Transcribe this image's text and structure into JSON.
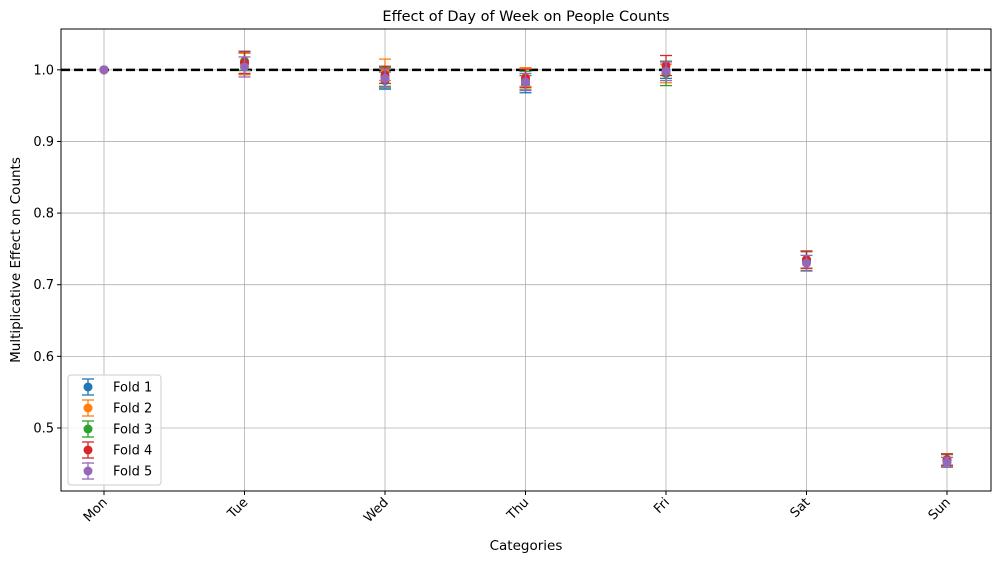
{
  "chart_data": {
    "type": "scatter",
    "title": "Effect of Day of Week on People Counts",
    "xlabel": "Categories",
    "ylabel": "Multiplicative Effect on Counts",
    "categories": [
      "Mon",
      "Tue",
      "Wed",
      "Thu",
      "Fri",
      "Sat",
      "Sun"
    ],
    "ylim": [
      0.412,
      1.057
    ],
    "yticks": [
      "0.5",
      "0.6",
      "0.7",
      "0.8",
      "0.9",
      "1.0"
    ],
    "grid": true,
    "legend_position": "lower-left",
    "reference_line": {
      "y": 1.0,
      "style": "dashed",
      "color": "#000000"
    },
    "series": [
      {
        "name": "Fold 1",
        "color": "#1f77b4",
        "values": [
          1.0,
          1.01,
          0.985,
          0.98,
          1.0,
          0.735,
          0.455
        ],
        "errors": [
          0.0,
          0.016,
          0.012,
          0.012,
          0.012,
          0.012,
          0.008
        ]
      },
      {
        "name": "Fold 2",
        "color": "#ff7f0e",
        "values": [
          1.0,
          1.008,
          1.0,
          0.99,
          0.995,
          0.735,
          0.455
        ],
        "errors": [
          0.0,
          0.015,
          0.015,
          0.013,
          0.013,
          0.012,
          0.008
        ]
      },
      {
        "name": "Fold 3",
        "color": "#2ca02c",
        "values": [
          1.0,
          1.012,
          0.99,
          0.985,
          0.995,
          0.733,
          0.455
        ],
        "errors": [
          0.0,
          0.013,
          0.013,
          0.013,
          0.017,
          0.013,
          0.008
        ]
      },
      {
        "name": "Fold 4",
        "color": "#d62728",
        "values": [
          1.0,
          1.01,
          0.993,
          0.988,
          1.006,
          0.735,
          0.456
        ],
        "errors": [
          0.0,
          0.015,
          0.012,
          0.013,
          0.014,
          0.012,
          0.008
        ]
      },
      {
        "name": "Fold 5",
        "color": "#9467bd",
        "values": [
          1.0,
          1.004,
          0.988,
          0.983,
          0.998,
          0.73,
          0.452
        ],
        "errors": [
          0.0,
          0.014,
          0.013,
          0.012,
          0.013,
          0.011,
          0.007
        ]
      }
    ]
  }
}
